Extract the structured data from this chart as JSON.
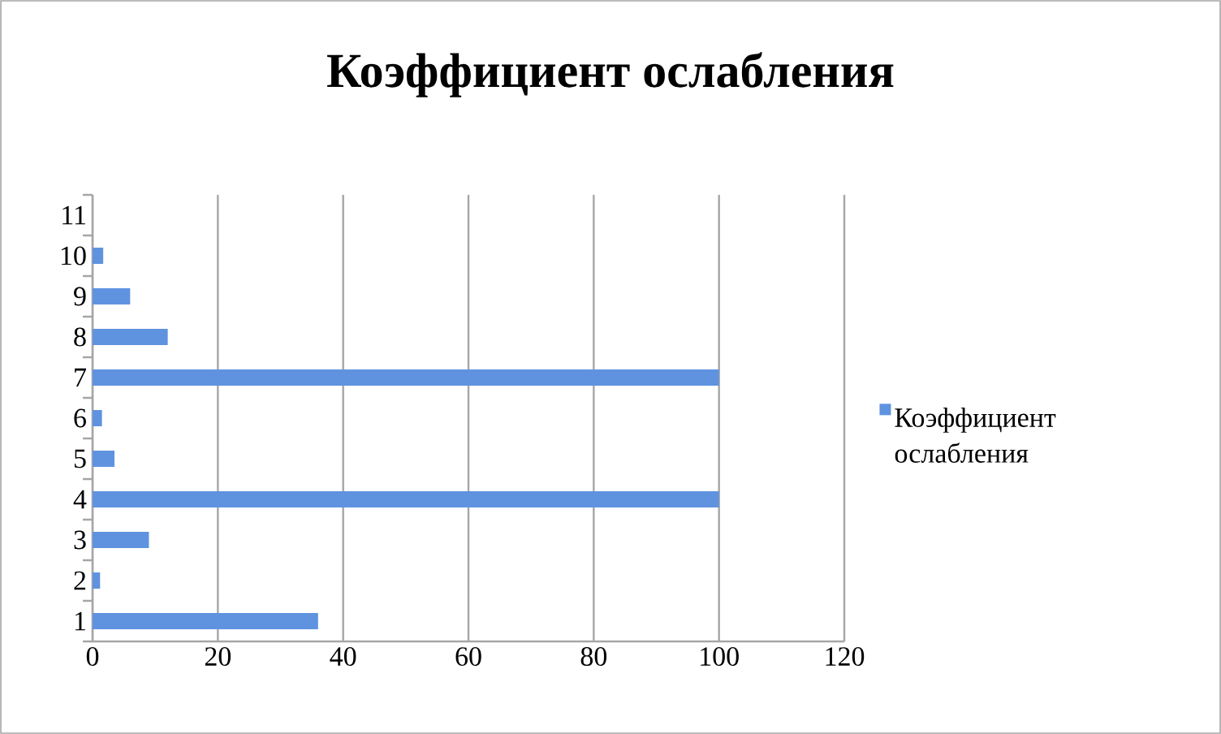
{
  "chart_data": {
    "type": "bar",
    "orientation": "horizontal",
    "title": "Коэффициент ослабления",
    "categories": [
      "11",
      "10",
      "9",
      "8",
      "7",
      "6",
      "5",
      "4",
      "3",
      "2",
      "1"
    ],
    "series": [
      {
        "name": "Коэффициент ослабления",
        "color": "#5f93e0",
        "values": [
          0,
          1.7,
          6,
          12,
          100,
          1.5,
          3.5,
          100,
          9,
          1.2,
          36
        ]
      }
    ],
    "xlim": [
      0,
      120
    ],
    "xticks": [
      0,
      20,
      40,
      60,
      80,
      100,
      120
    ],
    "grid": "x",
    "legend": "right"
  }
}
